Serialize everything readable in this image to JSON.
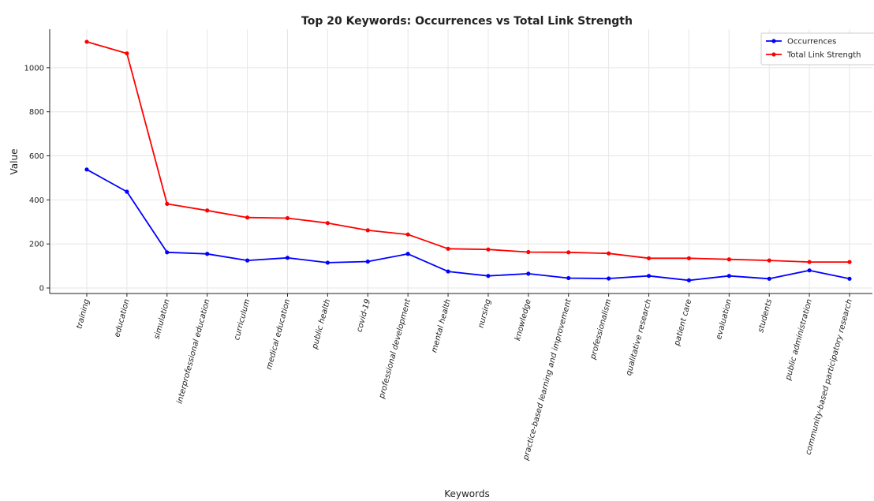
{
  "chart_data": {
    "type": "line",
    "title": "Top 20 Keywords: Occurrences vs Total Link Strength",
    "xlabel": "Keywords",
    "ylabel": "Value",
    "ylim": [
      -25,
      1175
    ],
    "yticks": [
      0,
      200,
      400,
      600,
      800,
      1000
    ],
    "grid": true,
    "legend_position": "top-right",
    "categories": [
      "training",
      "education",
      "simulation",
      "interprofessional education",
      "curriculum",
      "medical education",
      "public health",
      "covid-19",
      "professional development",
      "mental health",
      "nursing",
      "knowledge",
      "practice-based learning and improvement",
      "professionalism",
      "qualitative research",
      "patient care",
      "evaluation",
      "students",
      "public administration",
      "community-based participatory research"
    ],
    "series": [
      {
        "name": "Occurrences",
        "color": "#0000ff",
        "values": [
          538,
          437,
          162,
          155,
          125,
          137,
          115,
          120,
          155,
          75,
          55,
          65,
          45,
          43,
          55,
          35,
          55,
          42,
          80,
          42
        ]
      },
      {
        "name": "Total Link Strength",
        "color": "#ff0000",
        "values": [
          1118,
          1065,
          382,
          352,
          320,
          317,
          295,
          262,
          243,
          178,
          175,
          163,
          162,
          157,
          135,
          135,
          130,
          125,
          118,
          118
        ]
      }
    ]
  }
}
